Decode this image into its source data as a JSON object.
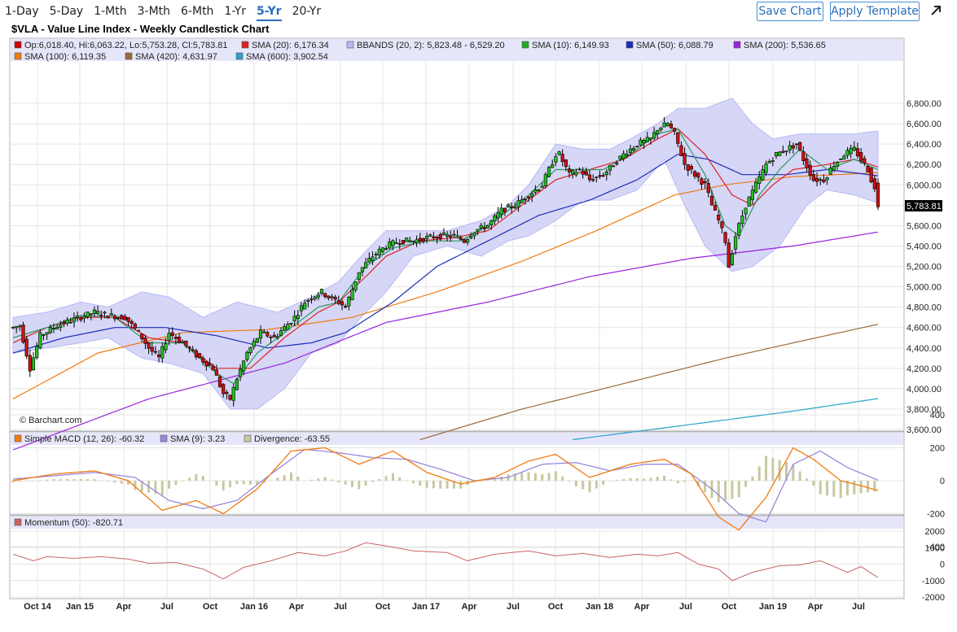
{
  "toolbar": {
    "periods": [
      "1-Day",
      "5-Day",
      "1-Mth",
      "3-Mth",
      "6-Mth",
      "1-Yr",
      "5-Yr",
      "20-Yr"
    ],
    "active_period": "5-Yr",
    "save_label": "Save Chart",
    "apply_label": "Apply Template",
    "expand_icon": "expand-arrow-icon"
  },
  "chart_title": "$VLA - Value Line Index - Weekly Candlestick Chart",
  "watermark": "© Barchart.com",
  "price_legend_row1": [
    {
      "text": "Op:6,018.40, Hi:6,063.22, Lo:5,753.28, Cl:5,783.81",
      "color": "#cc0000"
    },
    {
      "text": "SMA (20): 6,176.34",
      "color": "#dd2222"
    },
    {
      "text": "BBANDS (20, 2): 5,823.48 - 6,529.20",
      "color": "#b9b9f5"
    },
    {
      "text": "SMA (10): 6,149.93",
      "color": "#22aa22"
    },
    {
      "text": "SMA (50): 6,088.79",
      "color": "#1a2fb8"
    },
    {
      "text": "SMA (200): 5,536.65",
      "color": "#9a22dd"
    }
  ],
  "price_legend_row2": [
    {
      "text": "SMA (100): 6,119.35",
      "color": "#f07a10"
    },
    {
      "text": "SMA (420): 4,631.97",
      "color": "#9a6a3a"
    },
    {
      "text": "SMA (600): 3,902.54",
      "color": "#2aa3c9"
    }
  ],
  "macd_legend": [
    {
      "text": "Simple MACD (12, 26): -60.32",
      "color": "#f07a10"
    },
    {
      "text": "SMA (9): 3.23",
      "color": "#9a88dd"
    },
    {
      "text": "Divergence: -63.55",
      "color": "#c8c8a0"
    }
  ],
  "mom_legend": [
    {
      "text": "Momentum (50): -820.71",
      "color": "#c86464"
    }
  ],
  "last_price_label": "5,783.81",
  "chart_data": {
    "type": "line",
    "title": "$VLA - Value Line Index - Weekly Candlestick Chart",
    "x_labels": [
      "Oct 14",
      "Jan 15",
      "Apr",
      "Jul",
      "Oct",
      "Jan 16",
      "Apr",
      "Jul",
      "Oct",
      "Jan 17",
      "Apr",
      "Jul",
      "Oct",
      "Jan 18",
      "Apr",
      "Jul",
      "Oct",
      "Jan 19",
      "Apr",
      "Jul"
    ],
    "price_axis": {
      "ylim": [
        3600,
        6800
      ],
      "ticks": [
        "3,600.00",
        "3,800.00",
        "4,000.00",
        "4,200.00",
        "4,400.00",
        "4,600.00",
        "4,800.00",
        "5,000.00",
        "5,200.00",
        "5,400.00",
        "5,600.00",
        "5,800.00",
        "6,000.00",
        "6,200.00",
        "6,400.00",
        "6,600.00",
        "6,800.00"
      ]
    },
    "macd_axis": {
      "ylim": [
        -400,
        400
      ],
      "ticks": [
        "-400",
        "-200",
        "0",
        "200",
        "400"
      ]
    },
    "momentum_axis": {
      "ylim": [
        -2000,
        2000
      ],
      "ticks": [
        "-2000",
        "-1000",
        "0",
        "1000",
        "2000"
      ]
    },
    "last_bar": {
      "open": 6018.4,
      "high": 6063.22,
      "low": 5753.28,
      "close": 5783.81
    },
    "price_path": [
      [
        0,
        4600
      ],
      [
        2,
        4620
      ],
      [
        5,
        4200
      ],
      [
        8,
        4520
      ],
      [
        13,
        4620
      ],
      [
        18,
        4680
      ],
      [
        24,
        4750
      ],
      [
        28,
        4720
      ],
      [
        33,
        4700
      ],
      [
        37,
        4550
      ],
      [
        40,
        4400
      ],
      [
        43,
        4300
      ],
      [
        46,
        4550
      ],
      [
        50,
        4450
      ],
      [
        55,
        4300
      ],
      [
        59,
        4200
      ],
      [
        62,
        3950
      ],
      [
        64,
        3900
      ],
      [
        66,
        4100
      ],
      [
        69,
        4350
      ],
      [
        73,
        4550
      ],
      [
        77,
        4500
      ],
      [
        80,
        4600
      ],
      [
        83,
        4700
      ],
      [
        86,
        4850
      ],
      [
        88,
        4900
      ],
      [
        91,
        4950
      ],
      [
        93,
        4900
      ],
      [
        96,
        4850
      ],
      [
        98,
        4800
      ],
      [
        102,
        5150
      ],
      [
        106,
        5300
      ],
      [
        110,
        5400
      ],
      [
        114,
        5450
      ],
      [
        118,
        5450
      ],
      [
        122,
        5480
      ],
      [
        126,
        5500
      ],
      [
        130,
        5500
      ],
      [
        133,
        5450
      ],
      [
        136,
        5550
      ],
      [
        140,
        5600
      ],
      [
        144,
        5750
      ],
      [
        148,
        5800
      ],
      [
        152,
        5900
      ],
      [
        156,
        6000
      ],
      [
        158,
        6150
      ],
      [
        160,
        6300
      ],
      [
        161,
        6300
      ],
      [
        164,
        6100
      ],
      [
        167,
        6150
      ],
      [
        170,
        6050
      ],
      [
        174,
        6100
      ],
      [
        177,
        6200
      ],
      [
        180,
        6300
      ],
      [
        184,
        6400
      ],
      [
        188,
        6450
      ],
      [
        190,
        6550
      ],
      [
        193,
        6600
      ],
      [
        195,
        6500
      ],
      [
        198,
        6200
      ],
      [
        201,
        6100
      ],
      [
        204,
        6000
      ],
      [
        206,
        5800
      ],
      [
        208,
        5650
      ],
      [
        210,
        5450
      ],
      [
        211,
        5200
      ],
      [
        213,
        5500
      ],
      [
        216,
        5800
      ],
      [
        219,
        6000
      ],
      [
        222,
        6200
      ],
      [
        225,
        6300
      ],
      [
        228,
        6350
      ],
      [
        231,
        6400
      ],
      [
        233,
        6250
      ],
      [
        236,
        6050
      ],
      [
        239,
        6050
      ],
      [
        242,
        6200
      ],
      [
        245,
        6300
      ],
      [
        248,
        6350
      ],
      [
        250,
        6250
      ],
      [
        252,
        6150
      ],
      [
        254,
        5950
      ],
      [
        255,
        5784
      ]
    ],
    "sma20": [
      [
        0,
        4450
      ],
      [
        10,
        4600
      ],
      [
        20,
        4700
      ],
      [
        30,
        4700
      ],
      [
        40,
        4500
      ],
      [
        50,
        4450
      ],
      [
        60,
        4200
      ],
      [
        70,
        4200
      ],
      [
        80,
        4500
      ],
      [
        90,
        4750
      ],
      [
        96,
        4850
      ],
      [
        104,
        5100
      ],
      [
        110,
        5300
      ],
      [
        120,
        5450
      ],
      [
        130,
        5480
      ],
      [
        140,
        5550
      ],
      [
        150,
        5800
      ],
      [
        160,
        6050
      ],
      [
        170,
        6150
      ],
      [
        180,
        6250
      ],
      [
        190,
        6450
      ],
      [
        196,
        6550
      ],
      [
        204,
        6300
      ],
      [
        212,
        5900
      ],
      [
        218,
        5800
      ],
      [
        224,
        6000
      ],
      [
        230,
        6150
      ],
      [
        240,
        6200
      ],
      [
        248,
        6250
      ],
      [
        255,
        6176
      ]
    ],
    "sma10": [
      [
        0,
        4500
      ],
      [
        10,
        4600
      ],
      [
        20,
        4720
      ],
      [
        30,
        4700
      ],
      [
        40,
        4450
      ],
      [
        50,
        4450
      ],
      [
        60,
        4150
      ],
      [
        65,
        4050
      ],
      [
        72,
        4350
      ],
      [
        80,
        4550
      ],
      [
        90,
        4800
      ],
      [
        96,
        4850
      ],
      [
        104,
        5200
      ],
      [
        112,
        5380
      ],
      [
        122,
        5450
      ],
      [
        132,
        5450
      ],
      [
        142,
        5650
      ],
      [
        152,
        5900
      ],
      [
        160,
        6150
      ],
      [
        166,
        6150
      ],
      [
        174,
        6150
      ],
      [
        182,
        6300
      ],
      [
        190,
        6500
      ],
      [
        196,
        6550
      ],
      [
        204,
        6100
      ],
      [
        210,
        5600
      ],
      [
        214,
        5500
      ],
      [
        220,
        5900
      ],
      [
        226,
        6150
      ],
      [
        232,
        6350
      ],
      [
        240,
        6150
      ],
      [
        248,
        6250
      ],
      [
        255,
        6150
      ]
    ],
    "sma50": [
      [
        0,
        4350
      ],
      [
        15,
        4500
      ],
      [
        30,
        4600
      ],
      [
        45,
        4600
      ],
      [
        60,
        4520
      ],
      [
        75,
        4400
      ],
      [
        88,
        4450
      ],
      [
        98,
        4550
      ],
      [
        112,
        4850
      ],
      [
        125,
        5200
      ],
      [
        140,
        5450
      ],
      [
        155,
        5700
      ],
      [
        170,
        5850
      ],
      [
        184,
        6050
      ],
      [
        196,
        6300
      ],
      [
        205,
        6250
      ],
      [
        215,
        6100
      ],
      [
        228,
        6100
      ],
      [
        240,
        6150
      ],
      [
        255,
        6089
      ]
    ],
    "sma100": [
      [
        0,
        3900
      ],
      [
        25,
        4350
      ],
      [
        50,
        4550
      ],
      [
        75,
        4580
      ],
      [
        100,
        4700
      ],
      [
        125,
        4950
      ],
      [
        150,
        5250
      ],
      [
        172,
        5550
      ],
      [
        195,
        5900
      ],
      [
        210,
        6000
      ],
      [
        230,
        6080
      ],
      [
        255,
        6119
      ]
    ],
    "sma200": [
      [
        0,
        3400
      ],
      [
        40,
        3900
      ],
      [
        80,
        4250
      ],
      [
        110,
        4650
      ],
      [
        140,
        4850
      ],
      [
        170,
        5100
      ],
      [
        200,
        5280
      ],
      [
        230,
        5400
      ],
      [
        255,
        5537
      ]
    ],
    "sma420": [
      [
        120,
        3500
      ],
      [
        150,
        3800
      ],
      [
        180,
        4050
      ],
      [
        210,
        4300
      ],
      [
        230,
        4450
      ],
      [
        255,
        4632
      ]
    ],
    "sma600": [
      [
        165,
        3500
      ],
      [
        200,
        3650
      ],
      [
        230,
        3780
      ],
      [
        255,
        3903
      ]
    ],
    "bb_upper": [
      [
        0,
        4700
      ],
      [
        10,
        4750
      ],
      [
        20,
        4850
      ],
      [
        28,
        4800
      ],
      [
        38,
        4950
      ],
      [
        46,
        4900
      ],
      [
        56,
        4700
      ],
      [
        66,
        4850
      ],
      [
        78,
        4750
      ],
      [
        88,
        4900
      ],
      [
        96,
        5050
      ],
      [
        104,
        5350
      ],
      [
        110,
        5550
      ],
      [
        118,
        5550
      ],
      [
        128,
        5550
      ],
      [
        138,
        5650
      ],
      [
        146,
        5800
      ],
      [
        152,
        6000
      ],
      [
        160,
        6400
      ],
      [
        168,
        6350
      ],
      [
        176,
        6350
      ],
      [
        182,
        6450
      ],
      [
        190,
        6600
      ],
      [
        196,
        6750
      ],
      [
        204,
        6750
      ],
      [
        212,
        6850
      ],
      [
        218,
        6600
      ],
      [
        224,
        6450
      ],
      [
        232,
        6500
      ],
      [
        240,
        6500
      ],
      [
        248,
        6500
      ],
      [
        255,
        6529
      ]
    ],
    "bb_lower": [
      [
        0,
        4350
      ],
      [
        10,
        4400
      ],
      [
        20,
        4450
      ],
      [
        28,
        4500
      ],
      [
        38,
        4300
      ],
      [
        46,
        4250
      ],
      [
        56,
        4150
      ],
      [
        64,
        3800
      ],
      [
        72,
        3800
      ],
      [
        80,
        4000
      ],
      [
        88,
        4350
      ],
      [
        96,
        4450
      ],
      [
        104,
        4750
      ],
      [
        110,
        4950
      ],
      [
        118,
        5300
      ],
      [
        128,
        5400
      ],
      [
        138,
        5300
      ],
      [
        146,
        5450
      ],
      [
        152,
        5500
      ],
      [
        160,
        5650
      ],
      [
        168,
        5850
      ],
      [
        176,
        5850
      ],
      [
        184,
        5950
      ],
      [
        192,
        6250
      ],
      [
        198,
        5800
      ],
      [
        204,
        5400
      ],
      [
        212,
        5150
      ],
      [
        218,
        5200
      ],
      [
        226,
        5400
      ],
      [
        234,
        5800
      ],
      [
        240,
        5950
      ],
      [
        248,
        5900
      ],
      [
        255,
        5823
      ]
    ],
    "macd": [
      [
        0,
        0
      ],
      [
        12,
        40
      ],
      [
        24,
        60
      ],
      [
        34,
        0
      ],
      [
        44,
        -180
      ],
      [
        54,
        -120
      ],
      [
        62,
        -200
      ],
      [
        72,
        -50
      ],
      [
        82,
        180
      ],
      [
        92,
        200
      ],
      [
        102,
        100
      ],
      [
        112,
        180
      ],
      [
        122,
        50
      ],
      [
        132,
        -20
      ],
      [
        142,
        20
      ],
      [
        152,
        120
      ],
      [
        160,
        160
      ],
      [
        170,
        20
      ],
      [
        182,
        100
      ],
      [
        192,
        130
      ],
      [
        200,
        40
      ],
      [
        208,
        -220
      ],
      [
        214,
        -300
      ],
      [
        222,
        -100
      ],
      [
        230,
        200
      ],
      [
        236,
        130
      ],
      [
        244,
        0
      ],
      [
        250,
        -30
      ],
      [
        255,
        -60
      ]
    ],
    "macd_signal": [
      [
        0,
        10
      ],
      [
        12,
        30
      ],
      [
        24,
        50
      ],
      [
        36,
        20
      ],
      [
        46,
        -120
      ],
      [
        56,
        -170
      ],
      [
        66,
        -120
      ],
      [
        76,
        40
      ],
      [
        86,
        190
      ],
      [
        96,
        170
      ],
      [
        106,
        140
      ],
      [
        116,
        130
      ],
      [
        126,
        70
      ],
      [
        136,
        0
      ],
      [
        146,
        20
      ],
      [
        156,
        100
      ],
      [
        166,
        110
      ],
      [
        176,
        60
      ],
      [
        186,
        100
      ],
      [
        196,
        100
      ],
      [
        206,
        -50
      ],
      [
        214,
        -200
      ],
      [
        222,
        -250
      ],
      [
        230,
        100
      ],
      [
        238,
        180
      ],
      [
        246,
        80
      ],
      [
        255,
        3
      ]
    ],
    "momentum": [
      [
        0,
        600
      ],
      [
        6,
        200
      ],
      [
        10,
        450
      ],
      [
        18,
        350
      ],
      [
        26,
        450
      ],
      [
        34,
        300
      ],
      [
        40,
        50
      ],
      [
        48,
        100
      ],
      [
        56,
        -300
      ],
      [
        62,
        -900
      ],
      [
        68,
        -200
      ],
      [
        76,
        200
      ],
      [
        84,
        700
      ],
      [
        92,
        500
      ],
      [
        98,
        800
      ],
      [
        104,
        1300
      ],
      [
        110,
        1100
      ],
      [
        118,
        800
      ],
      [
        128,
        700
      ],
      [
        134,
        200
      ],
      [
        142,
        600
      ],
      [
        152,
        800
      ],
      [
        160,
        500
      ],
      [
        168,
        650
      ],
      [
        176,
        400
      ],
      [
        184,
        600
      ],
      [
        190,
        500
      ],
      [
        196,
        700
      ],
      [
        202,
        0
      ],
      [
        208,
        -300
      ],
      [
        212,
        -1000
      ],
      [
        218,
        -500
      ],
      [
        226,
        -100
      ],
      [
        232,
        -50
      ],
      [
        238,
        200
      ],
      [
        246,
        -500
      ],
      [
        250,
        -150
      ],
      [
        255,
        -821
      ]
    ]
  }
}
